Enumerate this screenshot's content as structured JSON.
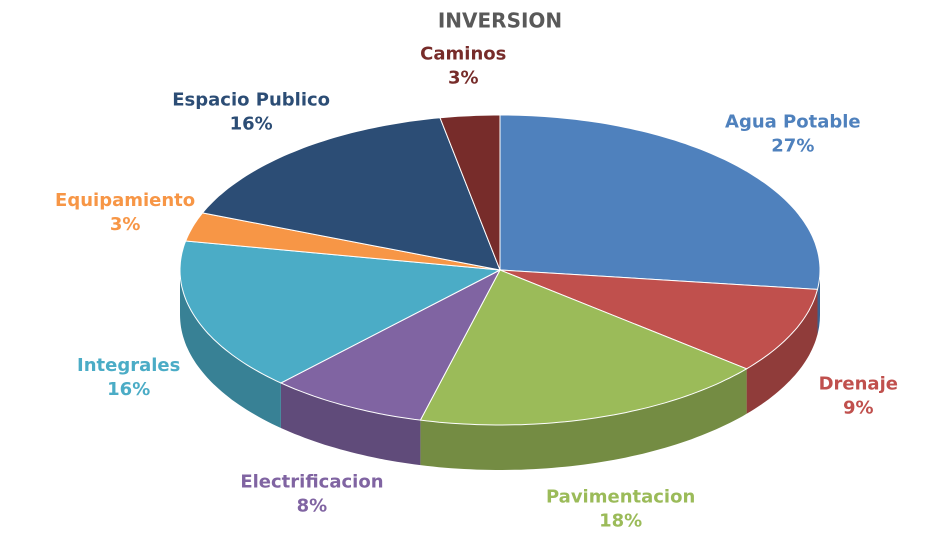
{
  "chart_data": {
    "type": "pie3d",
    "title": "INVERSION",
    "categories": [
      "Agua Potable",
      "Drenaje",
      "Pavimentacion",
      "Electrificacion",
      "Integrales",
      "Equipamiento",
      "Espacio Publico",
      "Caminos"
    ],
    "values": [
      27,
      9,
      18,
      8,
      16,
      3,
      16,
      3
    ],
    "value_labels": [
      "27%",
      "9%",
      "18%",
      "8%",
      "16%",
      "3%",
      "16%",
      "3%"
    ],
    "colors": [
      "#4f81bd",
      "#c0504d",
      "#9bbb59",
      "#8064a2",
      "#4bacc6",
      "#f79646",
      "#2c4d75",
      "#772c2a"
    ]
  }
}
